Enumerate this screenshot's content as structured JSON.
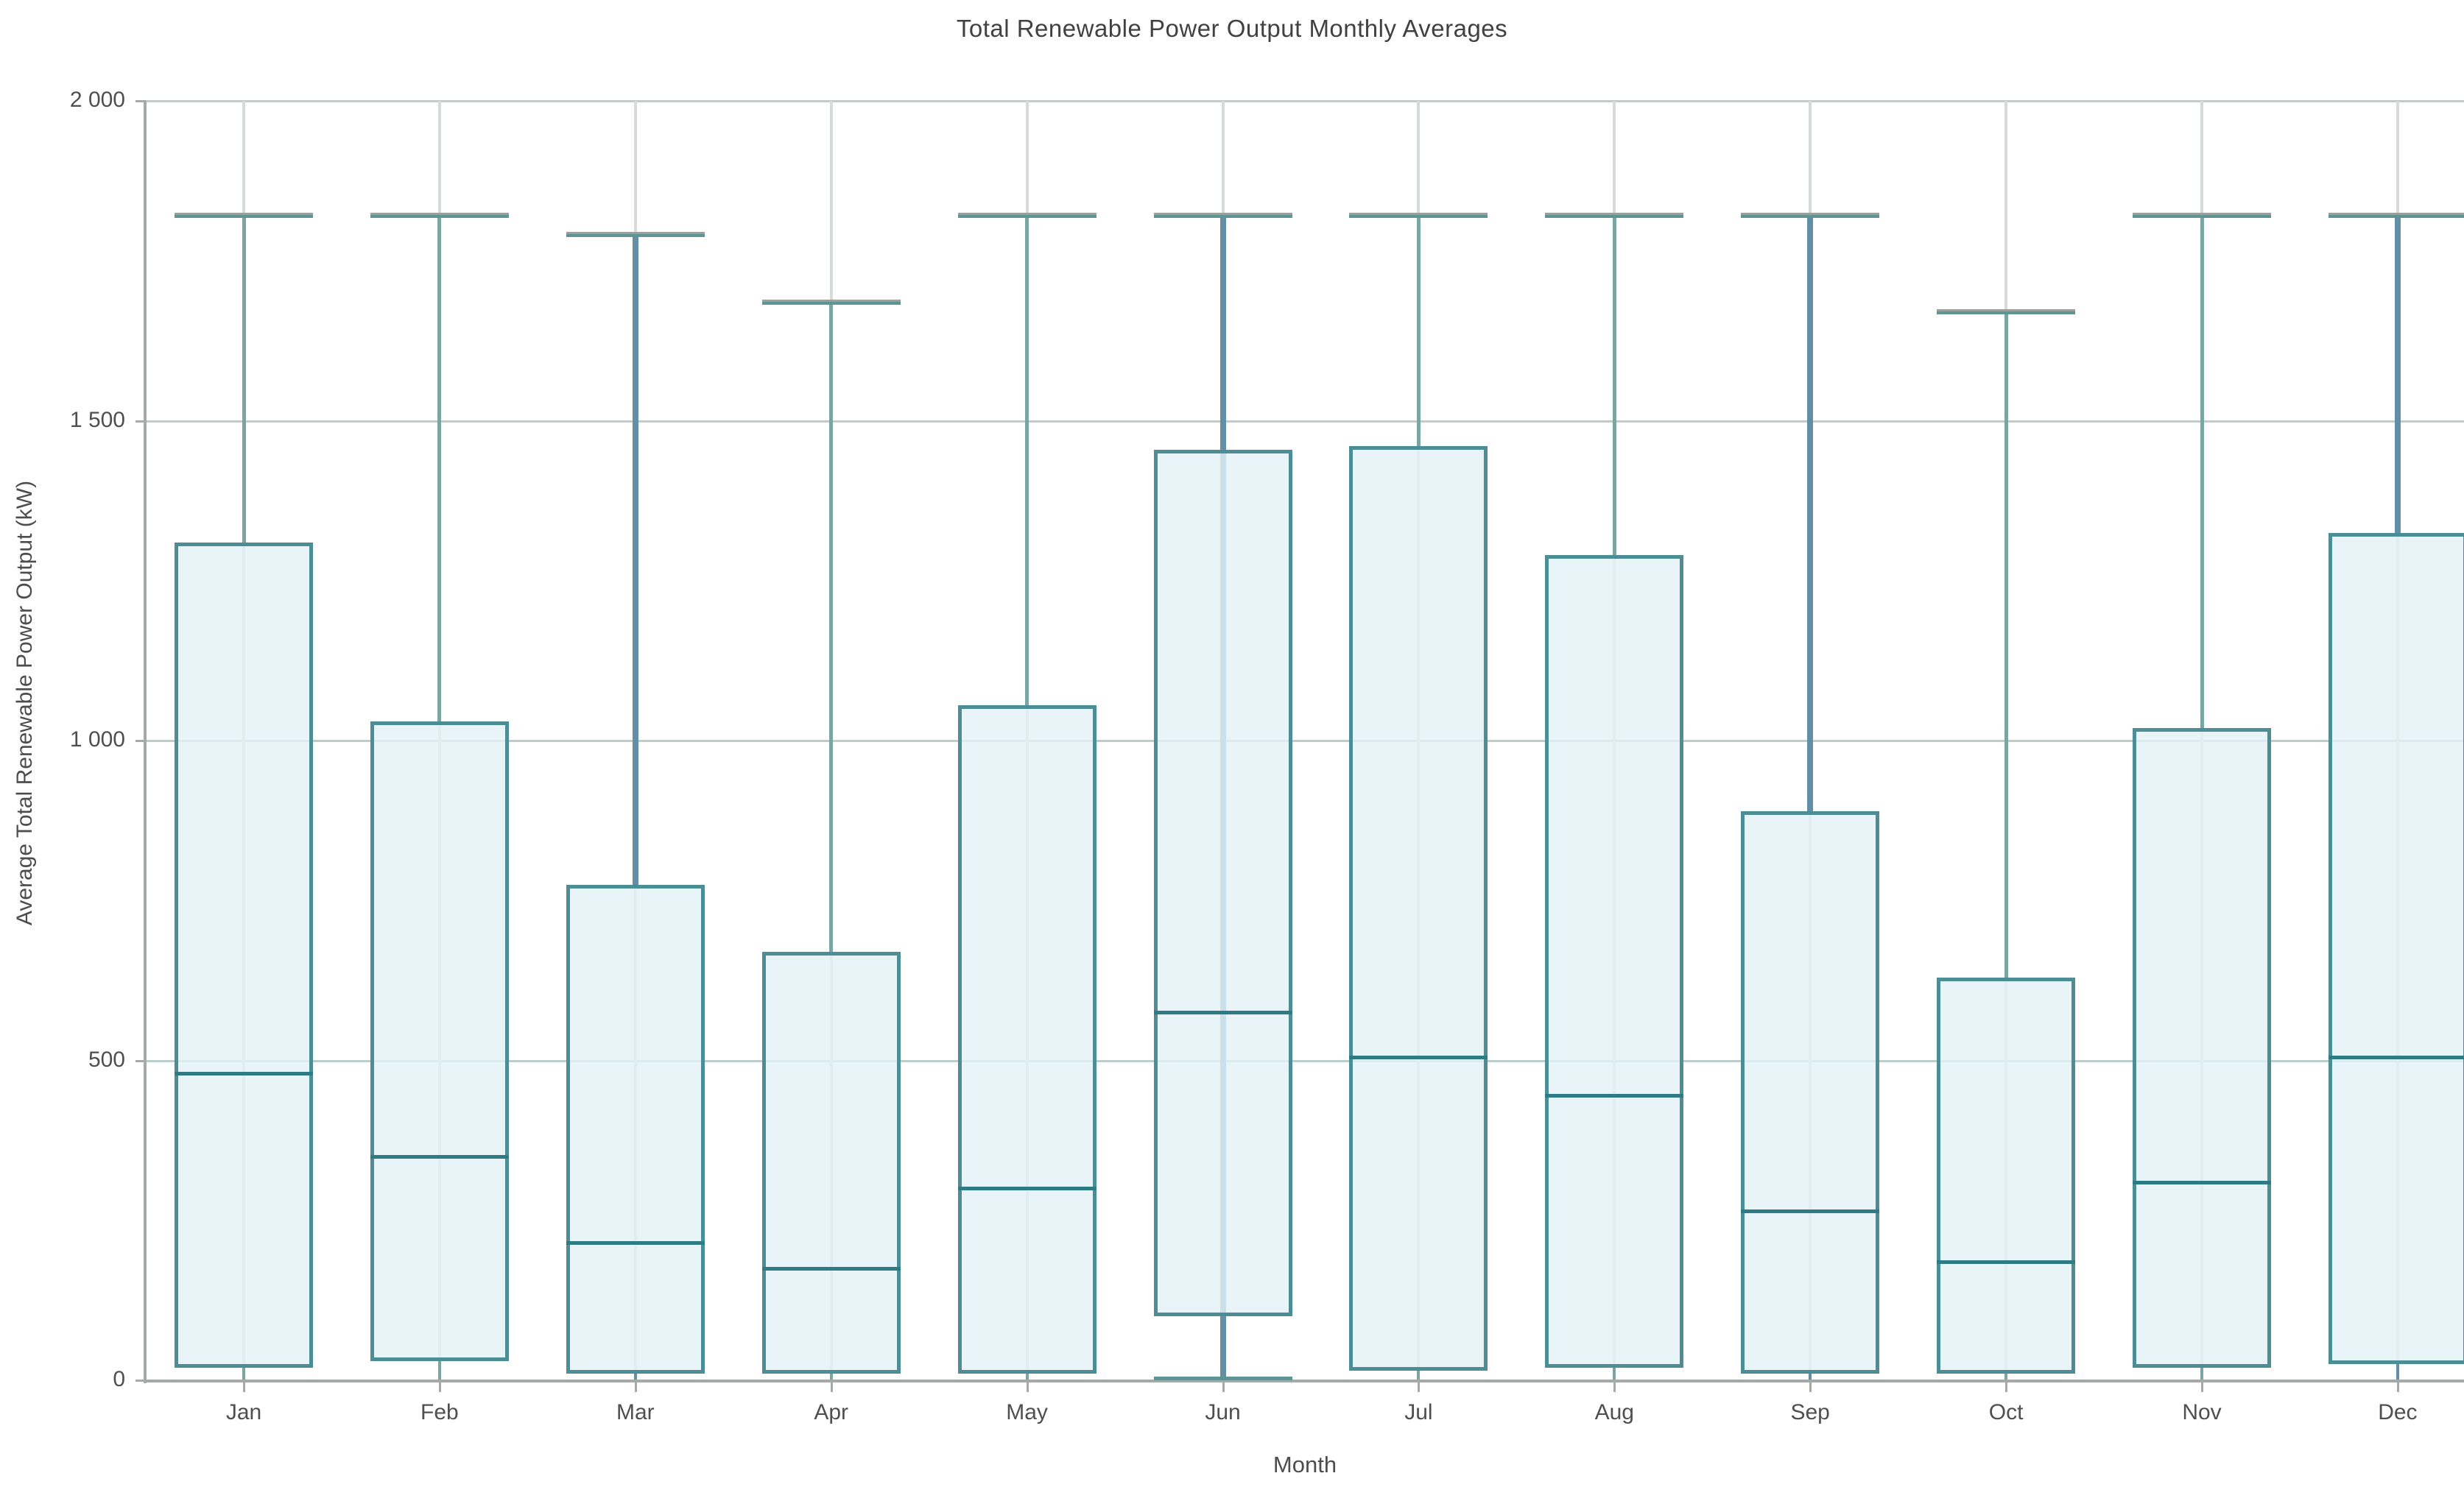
{
  "title": "Total Renewable Power Output Monthly Averages",
  "x_axis": {
    "label": "Month"
  },
  "y_axis": {
    "label": "Average Total Renewable Power Output (kW)",
    "tick_labels": [
      "0",
      "500",
      "1 000",
      "1 500",
      "2 000"
    ]
  },
  "chart_data": {
    "type": "boxplot",
    "title": "Total Renewable Power Output Monthly Averages",
    "xlabel": "Month",
    "ylabel": "Average Total Renewable Power Output (kW)",
    "ylim": [
      0,
      2000
    ],
    "yticks": [
      0,
      500,
      1000,
      1500,
      2000
    ],
    "ytick_labels": [
      "0",
      "500",
      "1 000",
      "1 500",
      "2 000"
    ],
    "grid": true,
    "legend": "none",
    "categories": [
      "Jan",
      "Feb",
      "Mar",
      "Apr",
      "May",
      "Jun",
      "Jul",
      "Aug",
      "Sep",
      "Oct",
      "Nov",
      "Dec"
    ],
    "boxes": [
      {
        "month": "Jan",
        "whisker_low": 0,
        "q1": 20,
        "median": 480,
        "q3": 1310,
        "whisker_high": 1820,
        "whisker_style": "teal",
        "whisker_through_box": false
      },
      {
        "month": "Feb",
        "whisker_low": 0,
        "q1": 30,
        "median": 350,
        "q3": 1030,
        "whisker_high": 1820,
        "whisker_style": "teal",
        "whisker_through_box": false
      },
      {
        "month": "Mar",
        "whisker_low": 0,
        "q1": 10,
        "median": 215,
        "q3": 775,
        "whisker_high": 1790,
        "whisker_style": "dark",
        "whisker_through_box": false
      },
      {
        "month": "Apr",
        "whisker_low": 0,
        "q1": 10,
        "median": 175,
        "q3": 670,
        "whisker_high": 1685,
        "whisker_style": "teal",
        "whisker_through_box": false
      },
      {
        "month": "May",
        "whisker_low": 0,
        "q1": 10,
        "median": 300,
        "q3": 1055,
        "whisker_high": 1820,
        "whisker_style": "teal",
        "whisker_through_box": false
      },
      {
        "month": "Jun",
        "whisker_low": 0,
        "q1": 100,
        "median": 575,
        "q3": 1455,
        "whisker_high": 1820,
        "whisker_style": "dark",
        "whisker_through_box": true
      },
      {
        "month": "Jul",
        "whisker_low": 0,
        "q1": 15,
        "median": 505,
        "q3": 1460,
        "whisker_high": 1820,
        "whisker_style": "teal",
        "whisker_through_box": false
      },
      {
        "month": "Aug",
        "whisker_low": 0,
        "q1": 20,
        "median": 445,
        "q3": 1290,
        "whisker_high": 1820,
        "whisker_style": "teal",
        "whisker_through_box": false
      },
      {
        "month": "Sep",
        "whisker_low": 0,
        "q1": 10,
        "median": 265,
        "q3": 890,
        "whisker_high": 1820,
        "whisker_style": "dark",
        "whisker_through_box": false
      },
      {
        "month": "Oct",
        "whisker_low": 0,
        "q1": 10,
        "median": 185,
        "q3": 630,
        "whisker_high": 1670,
        "whisker_style": "teal",
        "whisker_through_box": false
      },
      {
        "month": "Nov",
        "whisker_low": 0,
        "q1": 20,
        "median": 310,
        "q3": 1020,
        "whisker_high": 1820,
        "whisker_style": "teal",
        "whisker_through_box": false
      },
      {
        "month": "Dec",
        "whisker_low": 0,
        "q1": 25,
        "median": 505,
        "q3": 1325,
        "whisker_high": 1820,
        "whisker_style": "dark",
        "whisker_through_box": false
      }
    ]
  },
  "colors": {
    "box_fill": "#e3f1f7",
    "box_border": "#4d8d95",
    "median": "#2e7b86",
    "whisker_teal": "#7aa5a3",
    "whisker_dark": "#628fa5",
    "cap_grey": "#9aa09a",
    "cap_teal": "#5f9494",
    "hgrid": "#bccdcc",
    "vgrid": "#d7dbd7",
    "axis": "#a6aaa6",
    "text": "#4a4a4a"
  }
}
